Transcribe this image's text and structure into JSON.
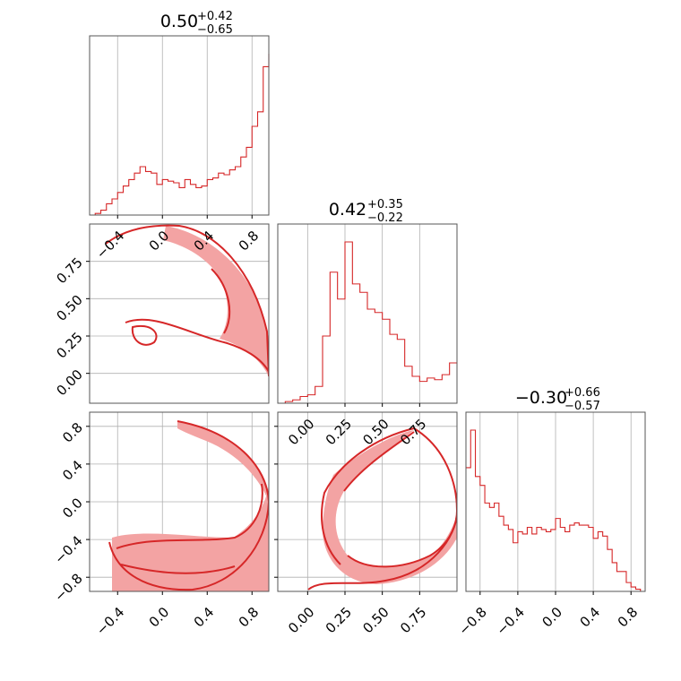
{
  "colors": {
    "series": "#d62728",
    "fill": "#f3a3a3",
    "grid": "#b0b0b0"
  },
  "chart_data": [
    {
      "type": "step-histogram",
      "panel": "param-1-marginal",
      "title": {
        "median": "0.50",
        "plus": "+0.42",
        "minus": "−0.65"
      },
      "x": [
        -0.65,
        -0.6,
        -0.55,
        -0.5,
        -0.45,
        -0.4,
        -0.35,
        -0.3,
        -0.25,
        -0.2,
        -0.15,
        -0.1,
        -0.05,
        0.0,
        0.05,
        0.1,
        0.15,
        0.2,
        0.25,
        0.3,
        0.35,
        0.4,
        0.45,
        0.5,
        0.55,
        0.6,
        0.65,
        0.7,
        0.75,
        0.8,
        0.85,
        0.9,
        0.95
      ],
      "values": [
        0.0,
        0.01,
        0.03,
        0.07,
        0.1,
        0.14,
        0.18,
        0.22,
        0.26,
        0.3,
        0.27,
        0.26,
        0.19,
        0.22,
        0.21,
        0.2,
        0.17,
        0.22,
        0.19,
        0.17,
        0.18,
        0.22,
        0.23,
        0.26,
        0.25,
        0.28,
        0.3,
        0.36,
        0.42,
        0.55,
        0.64,
        0.92,
        1.0
      ],
      "xlim": [
        -0.65,
        0.95
      ],
      "xticks": [
        "−0.4",
        "0.0",
        "0.4",
        "0.8"
      ],
      "xtick_values": [
        -0.4,
        0.0,
        0.4,
        0.8
      ],
      "grid": true
    },
    {
      "type": "step-histogram",
      "panel": "param-2-marginal",
      "title": {
        "median": "0.42",
        "plus": "+0.35",
        "minus": "−0.22"
      },
      "x": [
        -0.2,
        -0.15,
        -0.1,
        -0.05,
        0.0,
        0.05,
        0.1,
        0.15,
        0.2,
        0.25,
        0.3,
        0.35,
        0.4,
        0.45,
        0.5,
        0.55,
        0.6,
        0.65,
        0.7,
        0.75,
        0.8,
        0.85,
        0.9,
        0.95,
        1.0
      ],
      "values": [
        0.0,
        0.01,
        0.02,
        0.04,
        0.05,
        0.1,
        0.4,
        0.78,
        0.62,
        0.96,
        0.71,
        0.66,
        0.56,
        0.54,
        0.5,
        0.41,
        0.38,
        0.22,
        0.16,
        0.13,
        0.15,
        0.14,
        0.17,
        0.24,
        0.24
      ],
      "xlim": [
        -0.2,
        1.0
      ],
      "xticks": [
        "0.00",
        "0.25",
        "0.50",
        "0.75"
      ],
      "xtick_values": [
        0.0,
        0.25,
        0.5,
        0.75
      ],
      "grid": true
    },
    {
      "type": "step-histogram",
      "panel": "param-3-marginal",
      "title": {
        "median": "−0.30",
        "plus": "+0.66",
        "minus": "−0.57"
      },
      "x": [
        -0.95,
        -0.9,
        -0.85,
        -0.8,
        -0.75,
        -0.7,
        -0.65,
        -0.6,
        -0.55,
        -0.5,
        -0.45,
        -0.4,
        -0.35,
        -0.3,
        -0.25,
        -0.2,
        -0.15,
        -0.1,
        -0.05,
        0.0,
        0.05,
        0.1,
        0.15,
        0.2,
        0.25,
        0.3,
        0.35,
        0.4,
        0.45,
        0.5,
        0.55,
        0.6,
        0.65,
        0.7,
        0.75,
        0.8,
        0.85,
        0.9
      ],
      "values": [
        0.56,
        0.73,
        0.52,
        0.48,
        0.4,
        0.38,
        0.4,
        0.34,
        0.3,
        0.28,
        0.22,
        0.27,
        0.26,
        0.29,
        0.26,
        0.29,
        0.28,
        0.27,
        0.28,
        0.33,
        0.29,
        0.27,
        0.3,
        0.31,
        0.3,
        0.3,
        0.29,
        0.24,
        0.27,
        0.25,
        0.19,
        0.13,
        0.09,
        0.09,
        0.04,
        0.02,
        0.01,
        0.0
      ],
      "xlim": [
        -0.95,
        0.95
      ],
      "xticks": [
        "−0.8",
        "−0.4",
        "0.0",
        "0.4",
        "0.8"
      ],
      "xtick_values": [
        -0.8,
        -0.4,
        0.0,
        0.4,
        0.8
      ],
      "grid": true
    },
    {
      "type": "contour",
      "panel": "param-2-vs-param-1",
      "xlim": [
        -0.65,
        0.95
      ],
      "ylim": [
        -0.2,
        1.0
      ],
      "yticks": [
        "0.00",
        "0.25",
        "0.50",
        "0.75"
      ],
      "ytick_values": [
        0.0,
        0.25,
        0.5,
        0.75
      ],
      "grid": true
    },
    {
      "type": "contour",
      "panel": "param-3-vs-param-1",
      "xlim": [
        -0.65,
        0.95
      ],
      "ylim": [
        -0.95,
        0.95
      ],
      "xticks": [
        "−0.4",
        "0.0",
        "0.4",
        "0.8"
      ],
      "xtick_values": [
        -0.4,
        0.0,
        0.4,
        0.8
      ],
      "yticks": [
        "−0.8",
        "−0.4",
        "0.0",
        "0.4",
        "0.8"
      ],
      "ytick_values": [
        -0.8,
        -0.4,
        0.0,
        0.4,
        0.8
      ],
      "grid": true
    },
    {
      "type": "contour",
      "panel": "param-3-vs-param-2",
      "xlim": [
        -0.2,
        1.0
      ],
      "ylim": [
        -0.95,
        0.95
      ],
      "xticks": [
        "0.00",
        "0.25",
        "0.50",
        "0.75"
      ],
      "xtick_values": [
        0.0,
        0.25,
        0.5,
        0.75
      ],
      "grid": true
    }
  ]
}
